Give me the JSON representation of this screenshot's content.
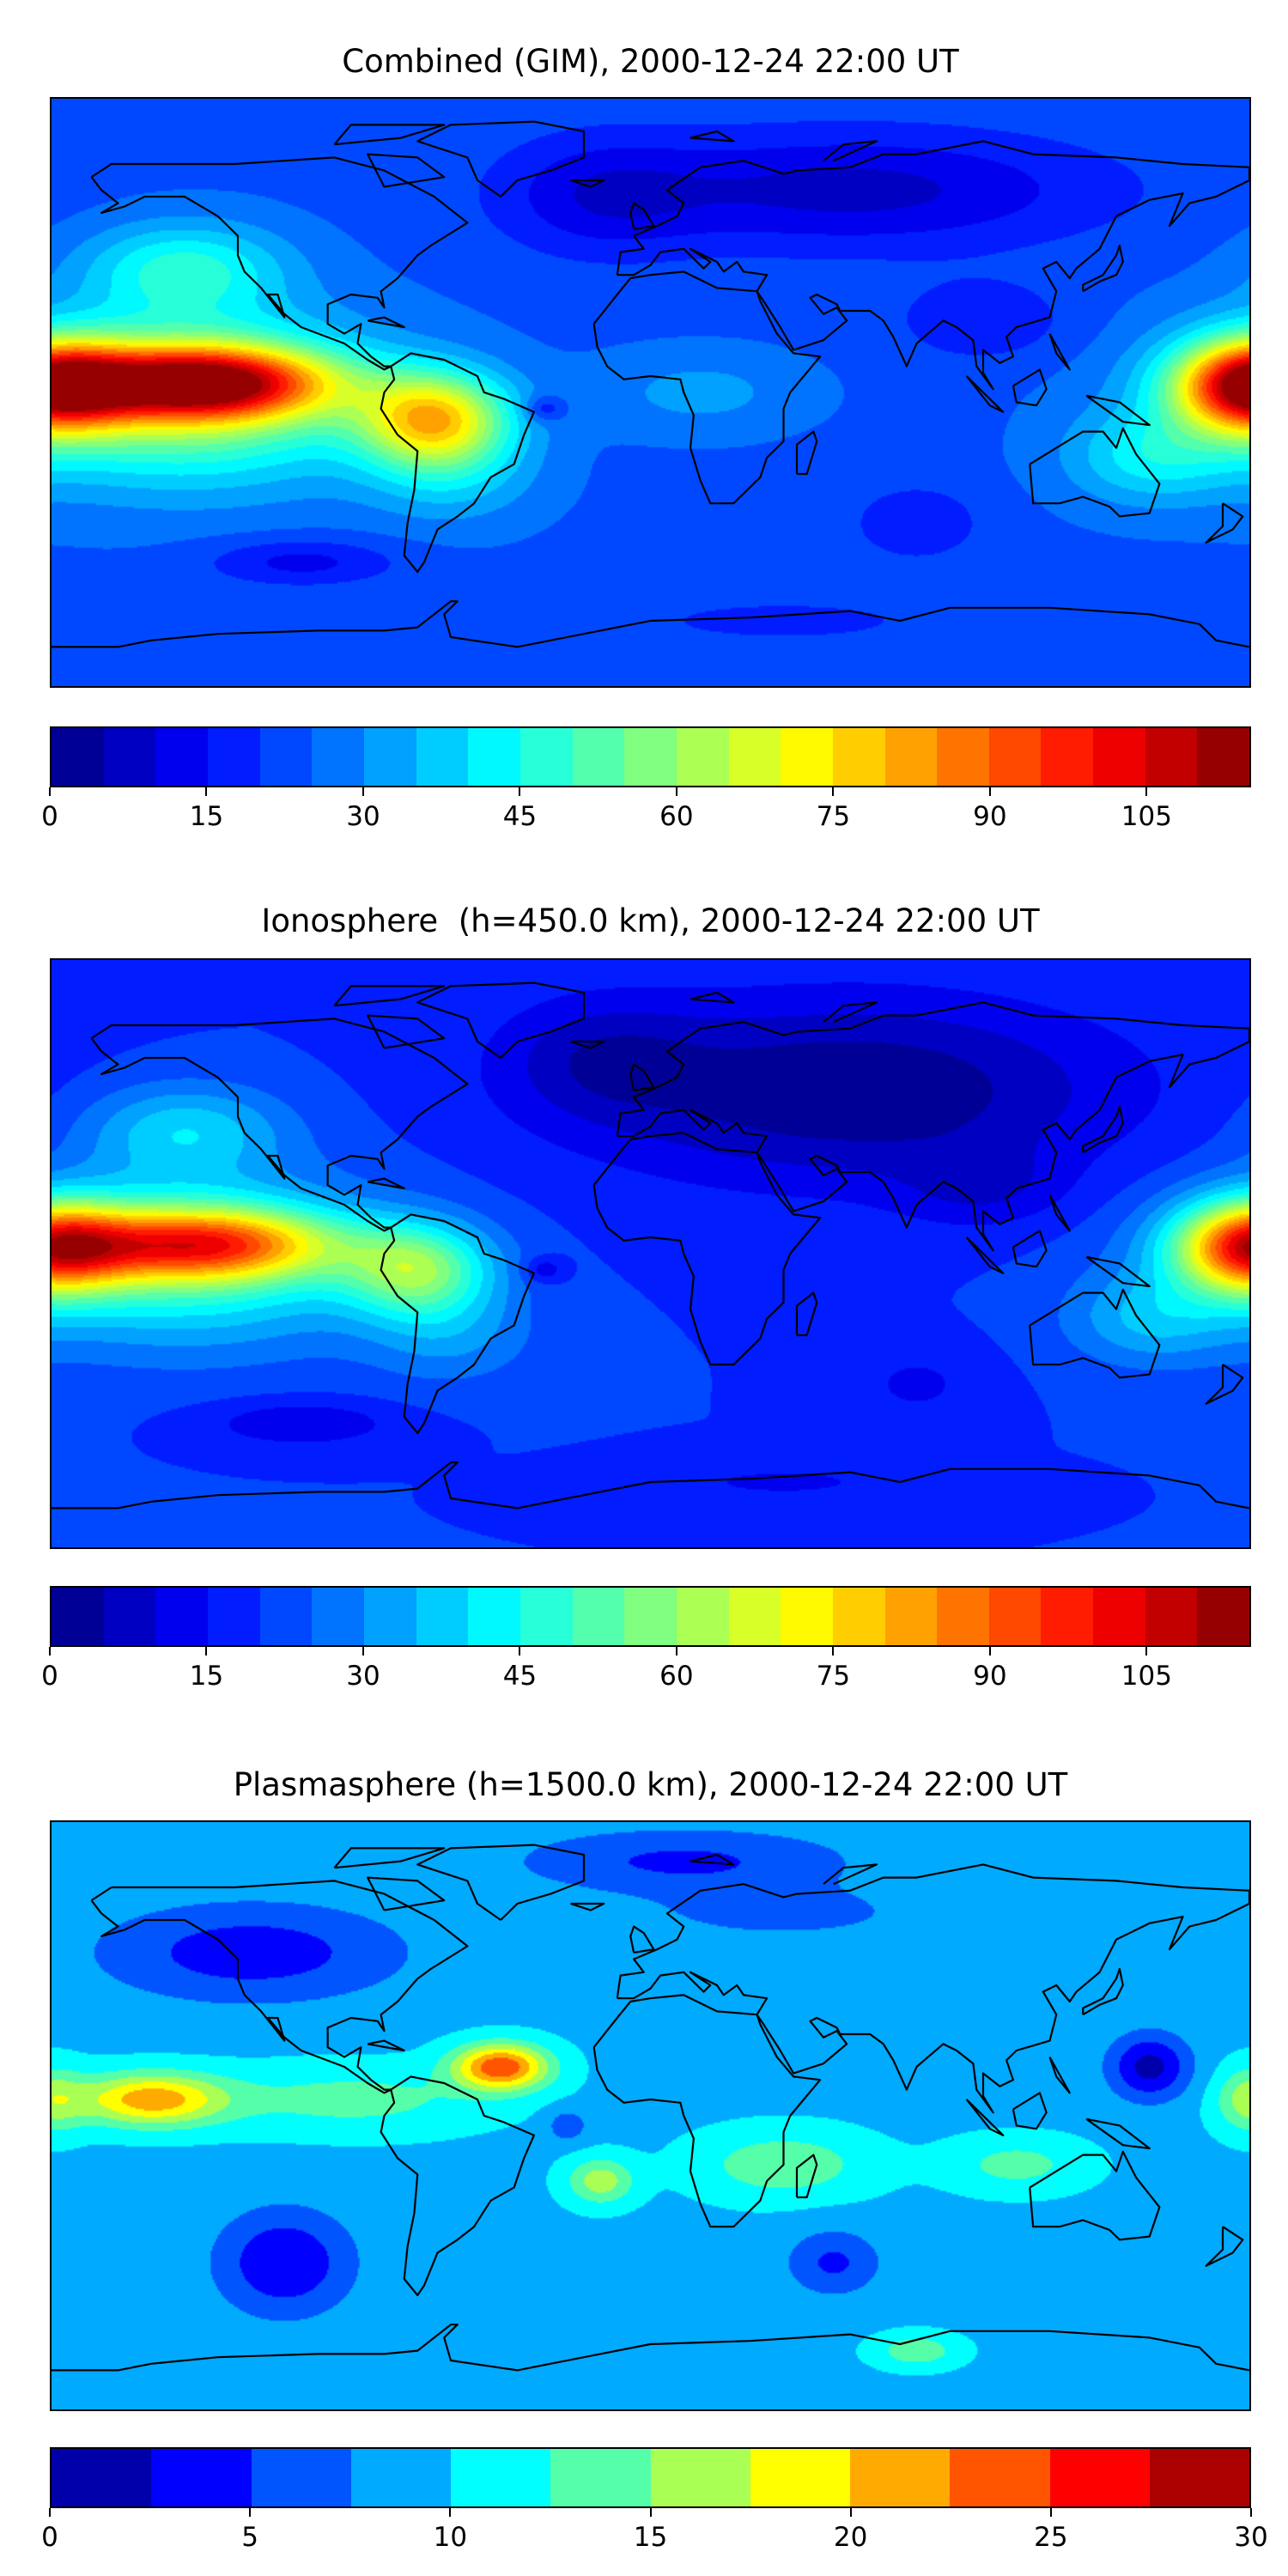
{
  "chart_data": [
    {
      "type": "heatmap",
      "title": "Combined (GIM), 2000-12-24 22:00 UT",
      "projection": "plate-carree",
      "lon_range": [
        -180,
        180
      ],
      "lat_range": [
        -90,
        90
      ],
      "colormap": "jet",
      "colorbar": {
        "vmin": 0,
        "vmax": 115,
        "step": 5,
        "ticks": [
          0,
          15,
          30,
          45,
          60,
          75,
          90,
          105
        ],
        "tick_labels": [
          "0",
          "15",
          "30",
          "45",
          "60",
          "75",
          "90",
          "105"
        ]
      },
      "field": {
        "base": 24,
        "features": [
          [
            60,
            62,
            -16,
            75,
            18
          ],
          [
            -15,
            60,
            -10,
            30,
            18
          ],
          [
            100,
            22,
            -9,
            25,
            12
          ],
          [
            -135,
            3,
            70,
            38,
            11
          ],
          [
            -140,
            -2,
            38,
            55,
            25
          ],
          [
            -65,
            -8,
            50,
            22,
            14
          ],
          [
            -140,
            38,
            22,
            30,
            14
          ],
          [
            180,
            2,
            68,
            22,
            14
          ],
          [
            150,
            -20,
            16,
            25,
            14
          ],
          [
            -32,
            -5,
            -12,
            6,
            4
          ],
          [
            15,
            0,
            8,
            30,
            12
          ],
          [
            -105,
            -52,
            -11,
            28,
            7
          ],
          [
            80,
            -40,
            -8,
            20,
            12
          ],
          [
            40,
            -70,
            -7,
            40,
            6
          ],
          [
            -60,
            -25,
            12,
            25,
            15
          ]
        ]
      }
    },
    {
      "type": "heatmap",
      "title": "Ionosphere  (h=450.0 km), 2000-12-24 22:00 UT",
      "projection": "plate-carree",
      "lon_range": [
        -180,
        180
      ],
      "lat_range": [
        -90,
        90
      ],
      "colormap": "jet",
      "colorbar": {
        "vmin": 0,
        "vmax": 115,
        "step": 5,
        "ticks": [
          0,
          15,
          30,
          45,
          60,
          75,
          90,
          105
        ],
        "tick_labels": [
          "0",
          "15",
          "30",
          "45",
          "60",
          "75",
          "90",
          "105"
        ]
      },
      "field": {
        "base": 20,
        "features": [
          [
            60,
            50,
            -20,
            80,
            28
          ],
          [
            -15,
            60,
            -10,
            30,
            18
          ],
          [
            100,
            20,
            -8,
            25,
            12
          ],
          [
            -135,
            3,
            55,
            40,
            11
          ],
          [
            -140,
            -2,
            30,
            55,
            25
          ],
          [
            -70,
            -5,
            35,
            22,
            14
          ],
          [
            -140,
            38,
            18,
            30,
            14
          ],
          [
            180,
            2,
            60,
            22,
            14
          ],
          [
            150,
            -20,
            14,
            25,
            14
          ],
          [
            -32,
            -5,
            -10,
            6,
            4
          ],
          [
            -105,
            -52,
            -10,
            28,
            7
          ],
          [
            80,
            -40,
            -6,
            20,
            12
          ],
          [
            40,
            -70,
            -6,
            40,
            6
          ],
          [
            -60,
            -25,
            10,
            25,
            15
          ]
        ]
      }
    },
    {
      "type": "heatmap",
      "title": "Plasmasphere (h=1500.0 km), 2000-12-24 22:00 UT",
      "projection": "plate-carree",
      "lon_range": [
        -180,
        180
      ],
      "lat_range": [
        -90,
        90
      ],
      "colormap": "jet",
      "colorbar": {
        "vmin": 0,
        "vmax": 30,
        "step": 2.5,
        "ticks": [
          0,
          5,
          10,
          15,
          20,
          25,
          30
        ],
        "tick_labels": [
          "0",
          "5",
          "10",
          "15",
          "20",
          "25",
          "30"
        ]
      },
      "field": {
        "base": 9.5,
        "features": [
          [
            -120,
            50,
            -6,
            45,
            15
          ],
          [
            10,
            78,
            -5,
            50,
            10
          ],
          [
            40,
            62,
            -3,
            40,
            8
          ],
          [
            -45,
            15,
            15,
            14,
            7
          ],
          [
            -150,
            5,
            12,
            22,
            8
          ],
          [
            -90,
            5,
            4,
            40,
            10
          ],
          [
            -110,
            -45,
            -7,
            20,
            16
          ],
          [
            55,
            -45,
            -5,
            14,
            10
          ],
          [
            150,
            15,
            -8,
            12,
            10
          ],
          [
            40,
            -15,
            5,
            25,
            10
          ],
          [
            -15,
            -20,
            7,
            10,
            7
          ],
          [
            80,
            -72,
            5,
            12,
            5
          ],
          [
            180,
            5,
            6,
            10,
            10
          ],
          [
            110,
            -15,
            4,
            20,
            8
          ],
          [
            -25,
            -3,
            -4,
            6,
            5
          ]
        ]
      }
    }
  ]
}
